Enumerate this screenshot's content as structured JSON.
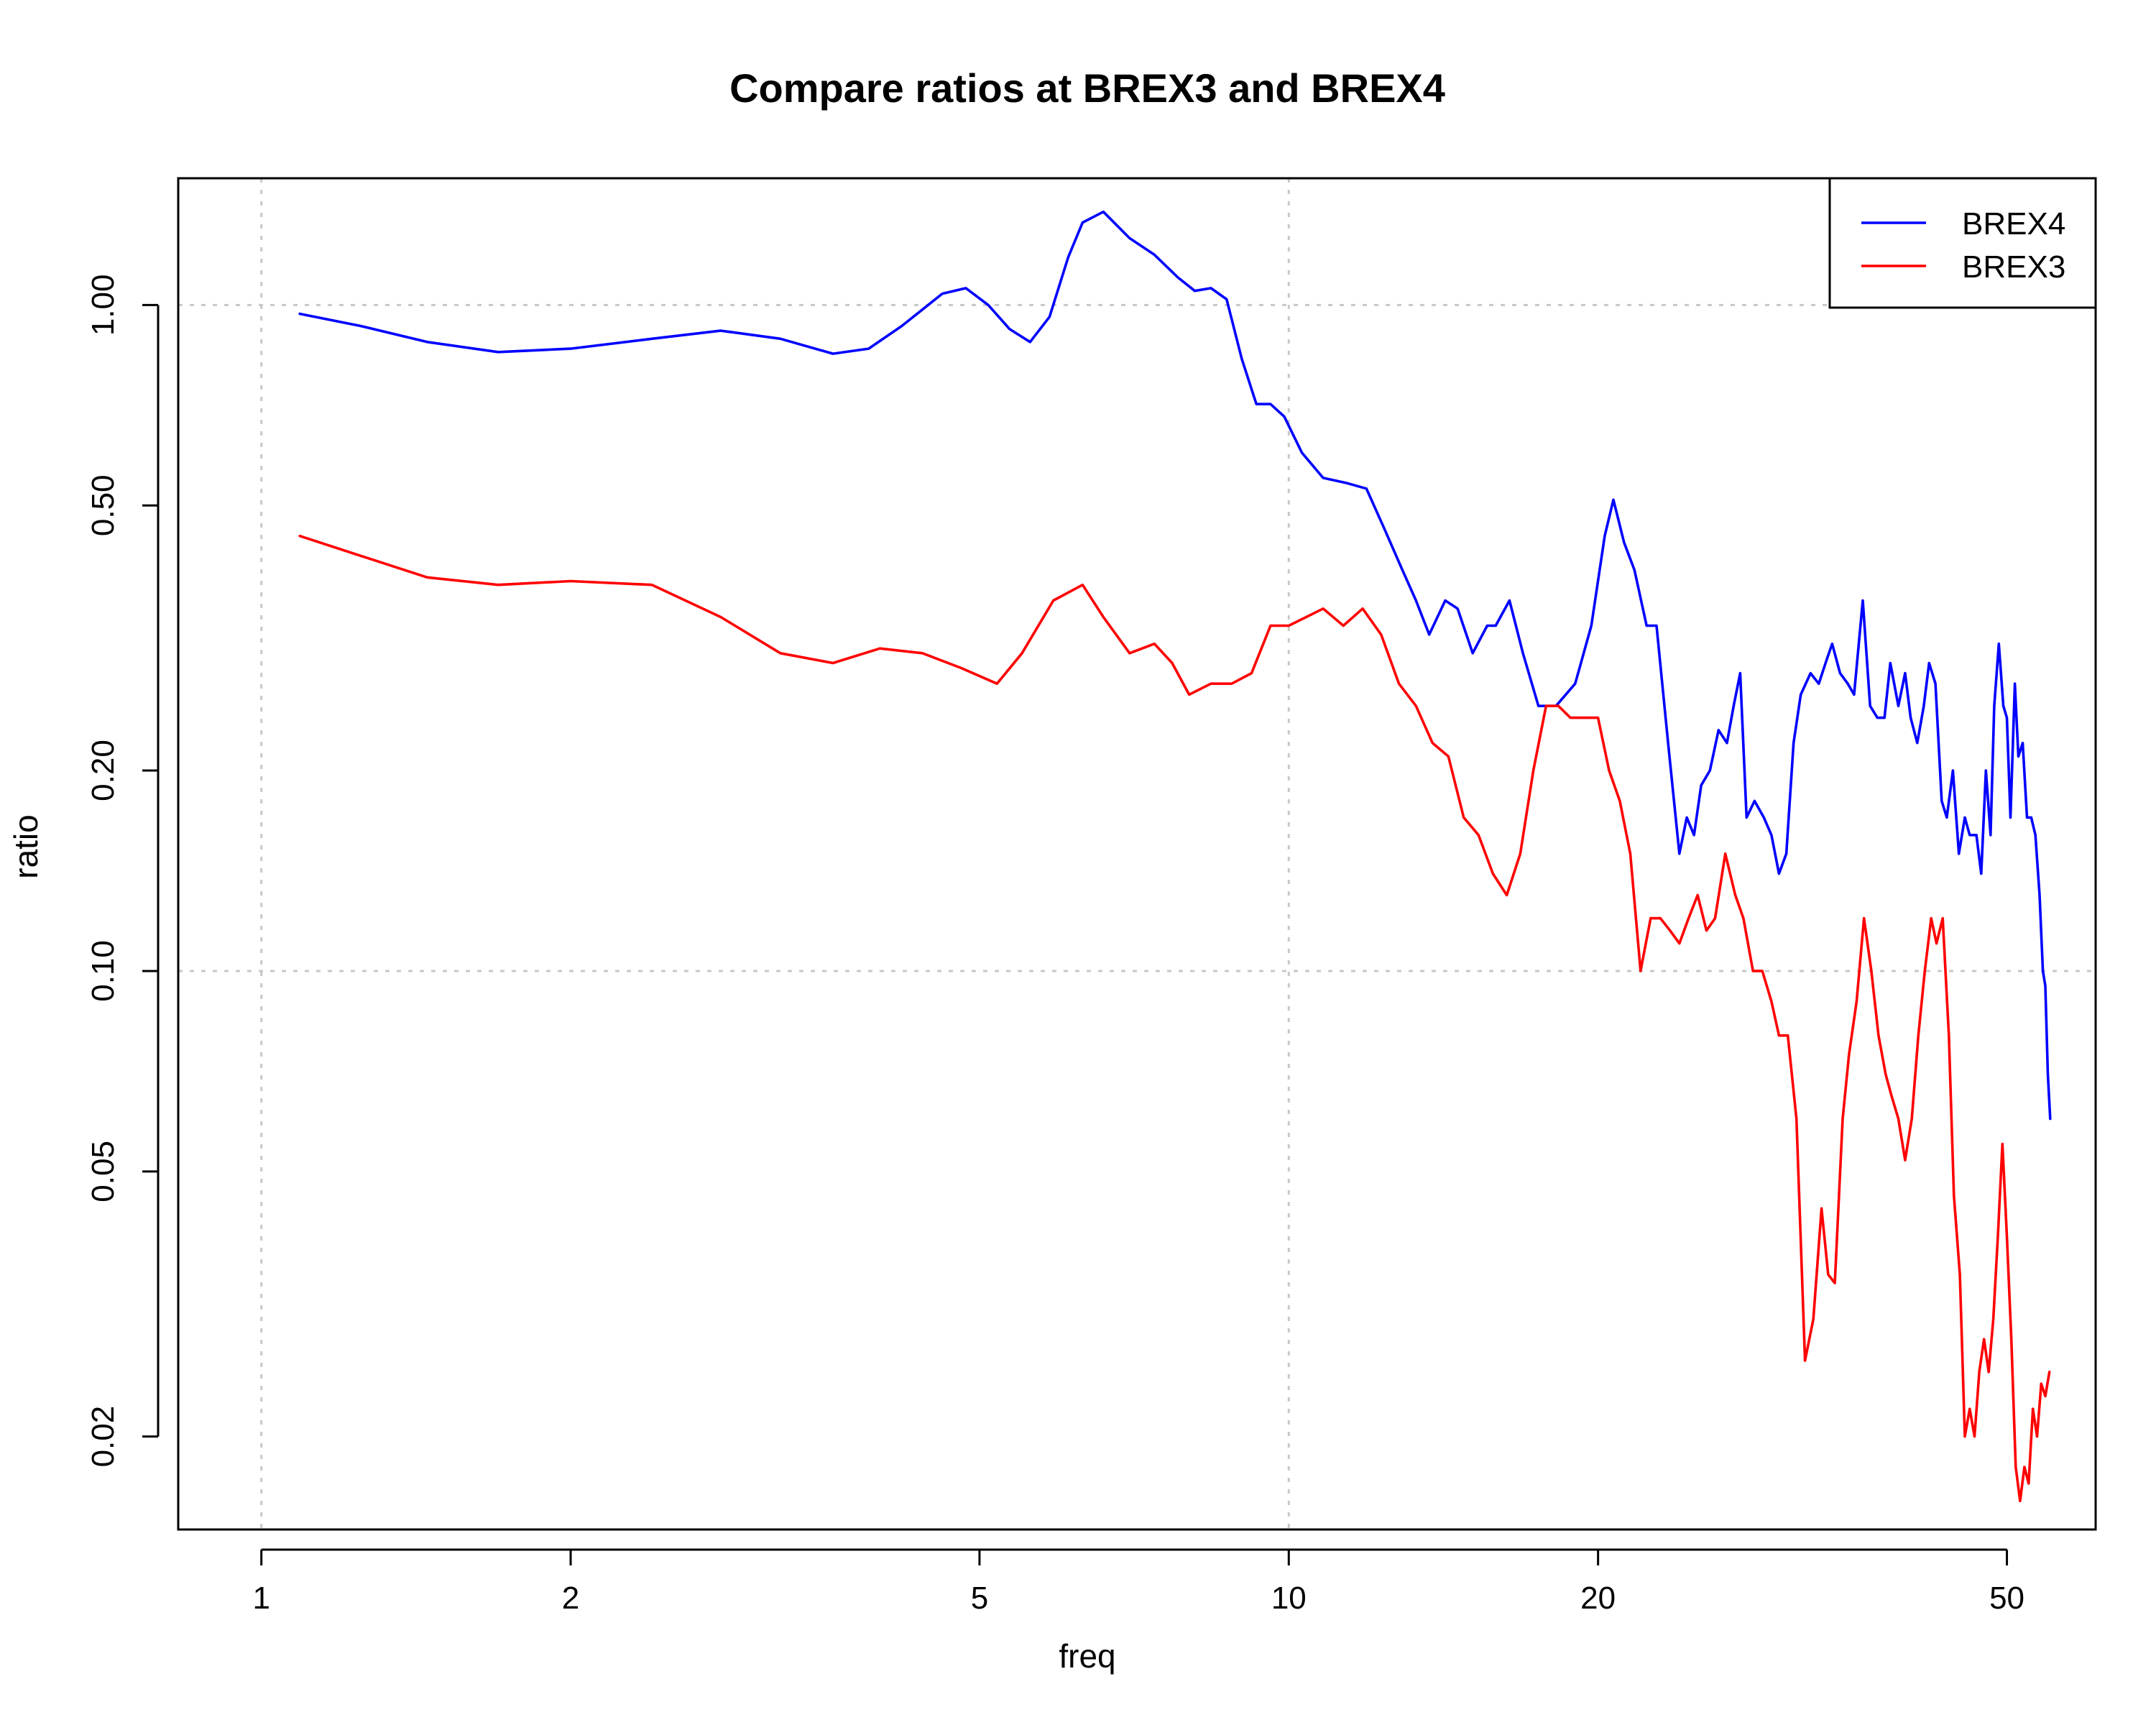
{
  "chart_data": {
    "type": "line",
    "title": "Compare ratios at BREX3 and BREX4",
    "xlabel": "freq",
    "ylabel": "ratio",
    "x_scale": "log",
    "y_scale": "log",
    "xlim": [
      0.83,
      61
    ],
    "ylim": [
      0.0145,
      1.55
    ],
    "x_ticks": [
      1,
      2,
      5,
      10,
      20,
      50
    ],
    "x_tick_labels": [
      "1",
      "2",
      "5",
      "10",
      "20",
      "50"
    ],
    "y_ticks": [
      0.02,
      0.05,
      0.1,
      0.2,
      0.5,
      1.0
    ],
    "y_tick_labels": [
      "0.02",
      "0.05",
      "0.10",
      "0.20",
      "0.50",
      "1.00"
    ],
    "grid": {
      "x": [
        1,
        10
      ],
      "y": [
        0.1,
        1.0
      ]
    },
    "legend_position": "top-right",
    "series": [
      {
        "name": "BREX4",
        "color": "#0000ff",
        "x": [
          1.09,
          1.25,
          1.45,
          1.7,
          2.0,
          2.4,
          2.8,
          3.2,
          3.6,
          3.9,
          4.2,
          4.6,
          4.85,
          5.1,
          5.35,
          5.6,
          5.85,
          6.1,
          6.3,
          6.6,
          7.0,
          7.4,
          7.8,
          8.1,
          8.4,
          8.7,
          9.0,
          9.3,
          9.6,
          9.9,
          10.3,
          10.8,
          11.4,
          11.9,
          12.4,
          12.9,
          13.3,
          13.7,
          14.2,
          14.6,
          15.1,
          15.6,
          15.9,
          16.4,
          16.9,
          17.5,
          18.2,
          19.0,
          19.7,
          20.3,
          20.7,
          21.2,
          21.7,
          22.3,
          22.8,
          23.4,
          24.0,
          24.4,
          24.8,
          25.2,
          25.7,
          26.2,
          26.7,
          27.1,
          27.5,
          27.9,
          28.4,
          29.0,
          29.5,
          30.0,
          30.5,
          31.0,
          31.5,
          32.2,
          32.8,
          33.3,
          33.8,
          34.4,
          35.0,
          35.5,
          36.2,
          36.8,
          37.4,
          38.0,
          38.5,
          39.2,
          39.8,
          40.3,
          40.9,
          41.5,
          42.0,
          42.6,
          43.2,
          43.7,
          44.3,
          44.9,
          45.5,
          46.0,
          46.7,
          47.2,
          47.7,
          48.2,
          48.6,
          49.1,
          49.6,
          50.0,
          50.4,
          50.9,
          51.3,
          51.8,
          52.3,
          52.8,
          53.3,
          53.8,
          54.2,
          54.5,
          54.8,
          55.1
        ],
        "y": [
          0.97,
          0.93,
          0.88,
          0.85,
          0.86,
          0.89,
          0.915,
          0.89,
          0.845,
          0.86,
          0.93,
          1.04,
          1.06,
          1.0,
          0.92,
          0.88,
          0.96,
          1.18,
          1.33,
          1.38,
          1.26,
          1.19,
          1.1,
          1.05,
          1.06,
          1.02,
          0.83,
          0.71,
          0.71,
          0.68,
          0.6,
          0.55,
          0.54,
          0.53,
          0.46,
          0.4,
          0.36,
          0.32,
          0.36,
          0.35,
          0.3,
          0.33,
          0.33,
          0.36,
          0.3,
          0.25,
          0.25,
          0.27,
          0.33,
          0.45,
          0.51,
          0.44,
          0.4,
          0.33,
          0.33,
          0.22,
          0.15,
          0.17,
          0.16,
          0.19,
          0.2,
          0.23,
          0.22,
          0.25,
          0.28,
          0.17,
          0.18,
          0.17,
          0.16,
          0.14,
          0.15,
          0.22,
          0.26,
          0.28,
          0.27,
          0.29,
          0.31,
          0.28,
          0.27,
          0.26,
          0.36,
          0.25,
          0.24,
          0.24,
          0.29,
          0.25,
          0.28,
          0.24,
          0.22,
          0.25,
          0.29,
          0.27,
          0.18,
          0.17,
          0.2,
          0.15,
          0.17,
          0.16,
          0.16,
          0.14,
          0.2,
          0.16,
          0.25,
          0.31,
          0.25,
          0.24,
          0.17,
          0.27,
          0.21,
          0.22,
          0.17,
          0.17,
          0.16,
          0.13,
          0.1,
          0.095,
          0.07,
          0.06
        ]
      },
      {
        "name": "BREX3",
        "color": "#ff0000",
        "x": [
          1.09,
          1.25,
          1.45,
          1.7,
          2.0,
          2.4,
          2.8,
          3.2,
          3.6,
          4.0,
          4.4,
          4.8,
          5.2,
          5.5,
          5.9,
          6.3,
          6.6,
          7.0,
          7.4,
          7.7,
          8.0,
          8.4,
          8.8,
          9.2,
          9.6,
          10.0,
          10.4,
          10.8,
          11.3,
          11.8,
          12.3,
          12.8,
          13.3,
          13.8,
          14.3,
          14.8,
          15.3,
          15.8,
          16.3,
          16.8,
          17.3,
          17.8,
          18.3,
          18.8,
          19.4,
          20.0,
          20.5,
          21.0,
          21.5,
          22.0,
          22.5,
          23.0,
          23.5,
          24.0,
          24.5,
          25.0,
          25.5,
          26.0,
          26.6,
          27.2,
          27.7,
          28.3,
          28.9,
          29.5,
          30.0,
          30.6,
          31.2,
          31.8,
          32.4,
          33.0,
          33.5,
          34.0,
          34.6,
          35.1,
          35.7,
          36.3,
          36.9,
          37.5,
          38.1,
          38.6,
          39.2,
          39.8,
          40.4,
          41.0,
          41.6,
          42.2,
          42.7,
          43.3,
          43.9,
          44.4,
          45.0,
          45.5,
          46.0,
          46.5,
          47.0,
          47.5,
          48.0,
          48.5,
          49.0,
          49.5,
          50.0,
          50.5,
          51.0,
          51.5,
          52.0,
          52.5,
          53.0,
          53.5,
          54.0,
          54.5,
          55.0
        ],
        "y": [
          0.45,
          0.42,
          0.39,
          0.38,
          0.385,
          0.38,
          0.34,
          0.3,
          0.29,
          0.305,
          0.3,
          0.285,
          0.27,
          0.3,
          0.36,
          0.38,
          0.34,
          0.3,
          0.31,
          0.29,
          0.26,
          0.27,
          0.27,
          0.28,
          0.33,
          0.33,
          0.34,
          0.35,
          0.33,
          0.35,
          0.32,
          0.27,
          0.25,
          0.22,
          0.21,
          0.17,
          0.16,
          0.14,
          0.13,
          0.15,
          0.2,
          0.25,
          0.25,
          0.24,
          0.24,
          0.24,
          0.2,
          0.18,
          0.15,
          0.1,
          0.12,
          0.12,
          0.115,
          0.11,
          0.12,
          0.13,
          0.115,
          0.12,
          0.15,
          0.13,
          0.12,
          0.1,
          0.1,
          0.09,
          0.08,
          0.08,
          0.06,
          0.026,
          0.03,
          0.044,
          0.035,
          0.034,
          0.06,
          0.075,
          0.09,
          0.12,
          0.1,
          0.08,
          0.07,
          0.065,
          0.06,
          0.052,
          0.06,
          0.08,
          0.1,
          0.12,
          0.11,
          0.12,
          0.08,
          0.046,
          0.035,
          0.02,
          0.022,
          0.02,
          0.025,
          0.028,
          0.025,
          0.03,
          0.04,
          0.055,
          0.04,
          0.028,
          0.018,
          0.016,
          0.018,
          0.017,
          0.022,
          0.02,
          0.024,
          0.023,
          0.025
        ]
      }
    ]
  }
}
